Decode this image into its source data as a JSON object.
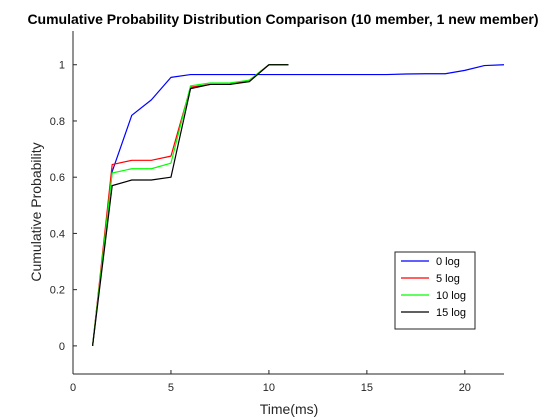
{
  "chart_data": {
    "type": "line",
    "title": "Cumulative Probability Distribution Comparison (10 member, 1 new member)",
    "xlabel": "Time(ms)",
    "ylabel": "Cumulative Probability",
    "xlim": [
      0,
      22
    ],
    "ylim": [
      -0.1,
      1.12
    ],
    "xticks": [
      0,
      5,
      10,
      15,
      20
    ],
    "yticks": [
      0,
      0.2,
      0.4,
      0.6,
      0.8,
      1
    ],
    "grid": false,
    "legend_position": "bottom-right",
    "series": [
      {
        "name": "0 log",
        "color": "#0000ff",
        "x": [
          1,
          2,
          3,
          4,
          5,
          6,
          7,
          8,
          9,
          10,
          11,
          12,
          13,
          14,
          15,
          16,
          17,
          18,
          19,
          20,
          21,
          22
        ],
        "y": [
          0,
          0.62,
          0.82,
          0.875,
          0.955,
          0.965,
          0.965,
          0.965,
          0.965,
          0.965,
          0.965,
          0.965,
          0.965,
          0.965,
          0.965,
          0.965,
          0.967,
          0.968,
          0.968,
          0.98,
          0.997,
          1.0
        ]
      },
      {
        "name": "5 log",
        "color": "#ff0000",
        "x": [
          1,
          2,
          3,
          4,
          5,
          6,
          7,
          8,
          9,
          10,
          11
        ],
        "y": [
          0,
          0.645,
          0.66,
          0.66,
          0.675,
          0.92,
          0.93,
          0.93,
          0.945,
          1.0,
          1.0
        ]
      },
      {
        "name": "10 log",
        "color": "#00ff00",
        "x": [
          1,
          2,
          3,
          4,
          5,
          6,
          7,
          8,
          9,
          10,
          11
        ],
        "y": [
          0,
          0.615,
          0.63,
          0.63,
          0.65,
          0.925,
          0.935,
          0.935,
          0.945,
          1.0,
          1.0
        ]
      },
      {
        "name": "15 log",
        "color": "#000000",
        "x": [
          1,
          2,
          3,
          4,
          5,
          6,
          7,
          8,
          9,
          10,
          11
        ],
        "y": [
          0,
          0.57,
          0.59,
          0.59,
          0.6,
          0.915,
          0.93,
          0.93,
          0.94,
          1.0,
          1.0
        ]
      }
    ]
  }
}
